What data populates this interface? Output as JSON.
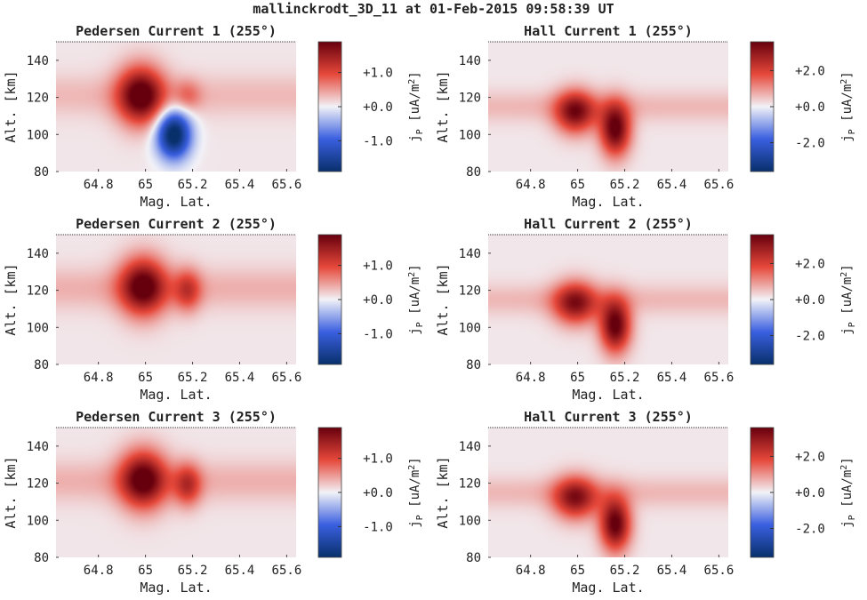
{
  "figure": {
    "title": "mallinckrodt_3D_11 at 01-Feb-2015 09:58:39 UT"
  },
  "colors": {
    "neg_max": "#08306b",
    "neg_mid": "#3a5fe0",
    "zero": "#f2f2f7",
    "pos_mid": "#e6483a",
    "pos_max": "#67000d",
    "background_tint": "#efe6ea"
  },
  "chart_data": [
    {
      "type": "heatmap",
      "title": "Pedersen Current 1 (255°)",
      "xlabel": "Mag. Lat.",
      "ylabel": "Alt. [km]",
      "xlim": [
        64.62,
        65.64
      ],
      "ylim": [
        80,
        150
      ],
      "xticks": [
        "64.8",
        "65",
        "65.2",
        "65.4",
        "65.6"
      ],
      "yticks": [
        "80",
        "100",
        "120",
        "140"
      ],
      "colorbar": {
        "label": "j_P [uA/m^2]",
        "range": [
          -1.9,
          1.9
        ],
        "ticks": [
          "+1.0",
          "+0.0",
          "-1.0"
        ],
        "tick_values": [
          1.0,
          0.0,
          -1.0
        ]
      },
      "background": 0.07,
      "bands": [
        {
          "x0": 64.62,
          "x1": 65.64,
          "center": 121,
          "width": 8,
          "amp": 0.25
        }
      ],
      "blobs": [
        {
          "lat": 64.98,
          "alt": 121,
          "slat": 0.07,
          "salt": 11,
          "amp": 1.9
        },
        {
          "lat": 65.18,
          "alt": 121,
          "slat": 0.04,
          "salt": 6,
          "amp": 0.5
        },
        {
          "lat": 65.12,
          "alt": 100,
          "slat": 0.05,
          "salt": 9,
          "amp": -2.2
        }
      ]
    },
    {
      "type": "heatmap",
      "title": "Hall Current 1 (255°)",
      "xlabel": "Mag. Lat.",
      "ylabel": "Alt. [km]",
      "xlim": [
        64.62,
        65.64
      ],
      "ylim": [
        80,
        150
      ],
      "xticks": [
        "64.8",
        "65",
        "65.2",
        "65.4",
        "65.6"
      ],
      "yticks": [
        "80",
        "100",
        "120",
        "140"
      ],
      "colorbar": {
        "label": "j_P [uA/m^2]",
        "range": [
          -3.6,
          3.6
        ],
        "ticks": [
          "+2.0",
          "+0.0",
          "-2.0"
        ],
        "tick_values": [
          2.0,
          0.0,
          -2.0
        ]
      },
      "background": 0.12,
      "bands": [
        {
          "x0": 64.62,
          "x1": 65.64,
          "center": 115,
          "width": 6,
          "amp": 0.5
        }
      ],
      "blobs": [
        {
          "lat": 64.99,
          "alt": 112,
          "slat": 0.06,
          "salt": 8,
          "amp": 3.0
        },
        {
          "lat": 65.16,
          "alt": 103,
          "slat": 0.045,
          "salt": 10,
          "amp": 3.6
        }
      ]
    },
    {
      "type": "heatmap",
      "title": "Pedersen Current 2 (255°)",
      "xlabel": "Mag. Lat.",
      "ylabel": "Alt. [km]",
      "xlim": [
        64.62,
        65.64
      ],
      "ylim": [
        80,
        150
      ],
      "xticks": [
        "64.8",
        "65",
        "65.2",
        "65.4",
        "65.6"
      ],
      "yticks": [
        "80",
        "100",
        "120",
        "140"
      ],
      "colorbar": {
        "label": "j_P [uA/m^2]",
        "range": [
          -1.9,
          1.9
        ],
        "ticks": [
          "+1.0",
          "+0.0",
          "-1.0"
        ],
        "tick_values": [
          1.0,
          0.0,
          -1.0
        ]
      },
      "background": 0.07,
      "bands": [
        {
          "x0": 64.62,
          "x1": 65.64,
          "center": 121,
          "width": 8,
          "amp": 0.3
        }
      ],
      "blobs": [
        {
          "lat": 64.99,
          "alt": 122,
          "slat": 0.07,
          "salt": 11,
          "amp": 1.8
        },
        {
          "lat": 65.18,
          "alt": 120,
          "slat": 0.04,
          "salt": 8,
          "amp": 0.9
        }
      ]
    },
    {
      "type": "heatmap",
      "title": "Hall Current 2 (255°)",
      "xlabel": "Mag. Lat.",
      "ylabel": "Alt. [km]",
      "xlim": [
        64.62,
        65.64
      ],
      "ylim": [
        80,
        150
      ],
      "xticks": [
        "64.8",
        "65",
        "65.2",
        "65.4",
        "65.6"
      ],
      "yticks": [
        "80",
        "100",
        "120",
        "140"
      ],
      "colorbar": {
        "label": "j_P [uA/m^2]",
        "range": [
          -3.6,
          3.6
        ],
        "ticks": [
          "+2.0",
          "+0.0",
          "-2.0"
        ],
        "tick_values": [
          2.0,
          0.0,
          -2.0
        ]
      },
      "background": 0.12,
      "bands": [
        {
          "x0": 64.62,
          "x1": 65.64,
          "center": 115,
          "width": 6,
          "amp": 0.5
        }
      ],
      "blobs": [
        {
          "lat": 64.99,
          "alt": 113,
          "slat": 0.065,
          "salt": 8,
          "amp": 2.8
        },
        {
          "lat": 65.16,
          "alt": 101,
          "slat": 0.045,
          "salt": 10,
          "amp": 3.6
        }
      ]
    },
    {
      "type": "heatmap",
      "title": "Pedersen Current 3 (255°)",
      "xlabel": "Mag. Lat.",
      "ylabel": "Alt. [km]",
      "xlim": [
        64.62,
        65.64
      ],
      "ylim": [
        80,
        150
      ],
      "xticks": [
        "64.8",
        "65",
        "65.2",
        "65.4",
        "65.6"
      ],
      "yticks": [
        "80",
        "100",
        "120",
        "140"
      ],
      "colorbar": {
        "label": "j_P [uA/m^2]",
        "range": [
          -1.9,
          1.9
        ],
        "ticks": [
          "+1.0",
          "+0.0",
          "-1.0"
        ],
        "tick_values": [
          1.0,
          0.0,
          -1.0
        ]
      },
      "background": 0.07,
      "bands": [
        {
          "x0": 64.62,
          "x1": 65.64,
          "center": 121,
          "width": 8,
          "amp": 0.3
        }
      ],
      "blobs": [
        {
          "lat": 64.99,
          "alt": 122,
          "slat": 0.07,
          "salt": 11,
          "amp": 1.8
        },
        {
          "lat": 65.18,
          "alt": 119,
          "slat": 0.04,
          "salt": 8,
          "amp": 1.0
        }
      ]
    },
    {
      "type": "heatmap",
      "title": "Hall Current 3 (255°)",
      "xlabel": "Mag. Lat.",
      "ylabel": "Alt. [km]",
      "xlim": [
        64.62,
        65.64
      ],
      "ylim": [
        80,
        150
      ],
      "xticks": [
        "64.8",
        "65",
        "65.2",
        "65.4",
        "65.6"
      ],
      "yticks": [
        "80",
        "100",
        "120",
        "140"
      ],
      "colorbar": {
        "label": "j_P [uA/m^2]",
        "range": [
          -3.6,
          3.6
        ],
        "ticks": [
          "+2.0",
          "+0.0",
          "-2.0"
        ],
        "tick_values": [
          2.0,
          0.0,
          -2.0
        ]
      },
      "background": 0.12,
      "bands": [
        {
          "x0": 64.62,
          "x1": 65.64,
          "center": 115,
          "width": 6,
          "amp": 0.5
        }
      ],
      "blobs": [
        {
          "lat": 64.99,
          "alt": 112,
          "slat": 0.065,
          "salt": 8,
          "amp": 2.8
        },
        {
          "lat": 65.16,
          "alt": 98,
          "slat": 0.045,
          "salt": 10,
          "amp": 3.6
        }
      ]
    }
  ]
}
